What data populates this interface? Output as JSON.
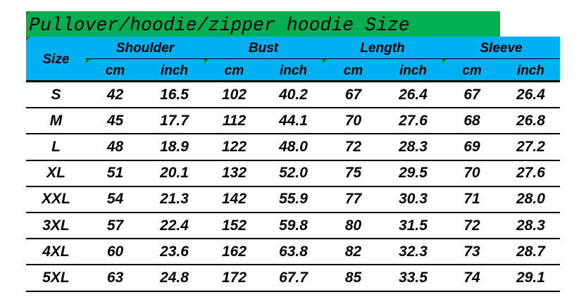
{
  "title": "Pullover/hoodie/zipper hoodie Size",
  "colors": {
    "title_bg": "#00B050",
    "header_bg": "#00B0F0"
  },
  "header": {
    "size": "Size",
    "groups": [
      "Shoulder",
      "Bust",
      "Length",
      "Sleeve"
    ],
    "units": [
      "cm",
      "inch",
      "cm",
      "inch",
      "cm",
      "inch",
      "cm",
      "inch"
    ]
  },
  "rows": [
    [
      "S",
      "42",
      "16.5",
      "102",
      "40.2",
      "67",
      "26.4",
      "67",
      "26.4"
    ],
    [
      "M",
      "45",
      "17.7",
      "112",
      "44.1",
      "70",
      "27.6",
      "68",
      "26.8"
    ],
    [
      "L",
      "48",
      "18.9",
      "122",
      "48.0",
      "72",
      "28.3",
      "69",
      "27.2"
    ],
    [
      "XL",
      "51",
      "20.1",
      "132",
      "52.0",
      "75",
      "29.5",
      "70",
      "27.6"
    ],
    [
      "XXL",
      "54",
      "21.3",
      "142",
      "55.9",
      "77",
      "30.3",
      "71",
      "28.0"
    ],
    [
      "3XL",
      "57",
      "22.4",
      "152",
      "59.8",
      "80",
      "31.5",
      "72",
      "28.3"
    ],
    [
      "4XL",
      "60",
      "23.6",
      "162",
      "63.8",
      "82",
      "32.3",
      "73",
      "28.7"
    ],
    [
      "5XL",
      "63",
      "24.8",
      "172",
      "67.7",
      "85",
      "33.5",
      "74",
      "29.1"
    ]
  ]
}
